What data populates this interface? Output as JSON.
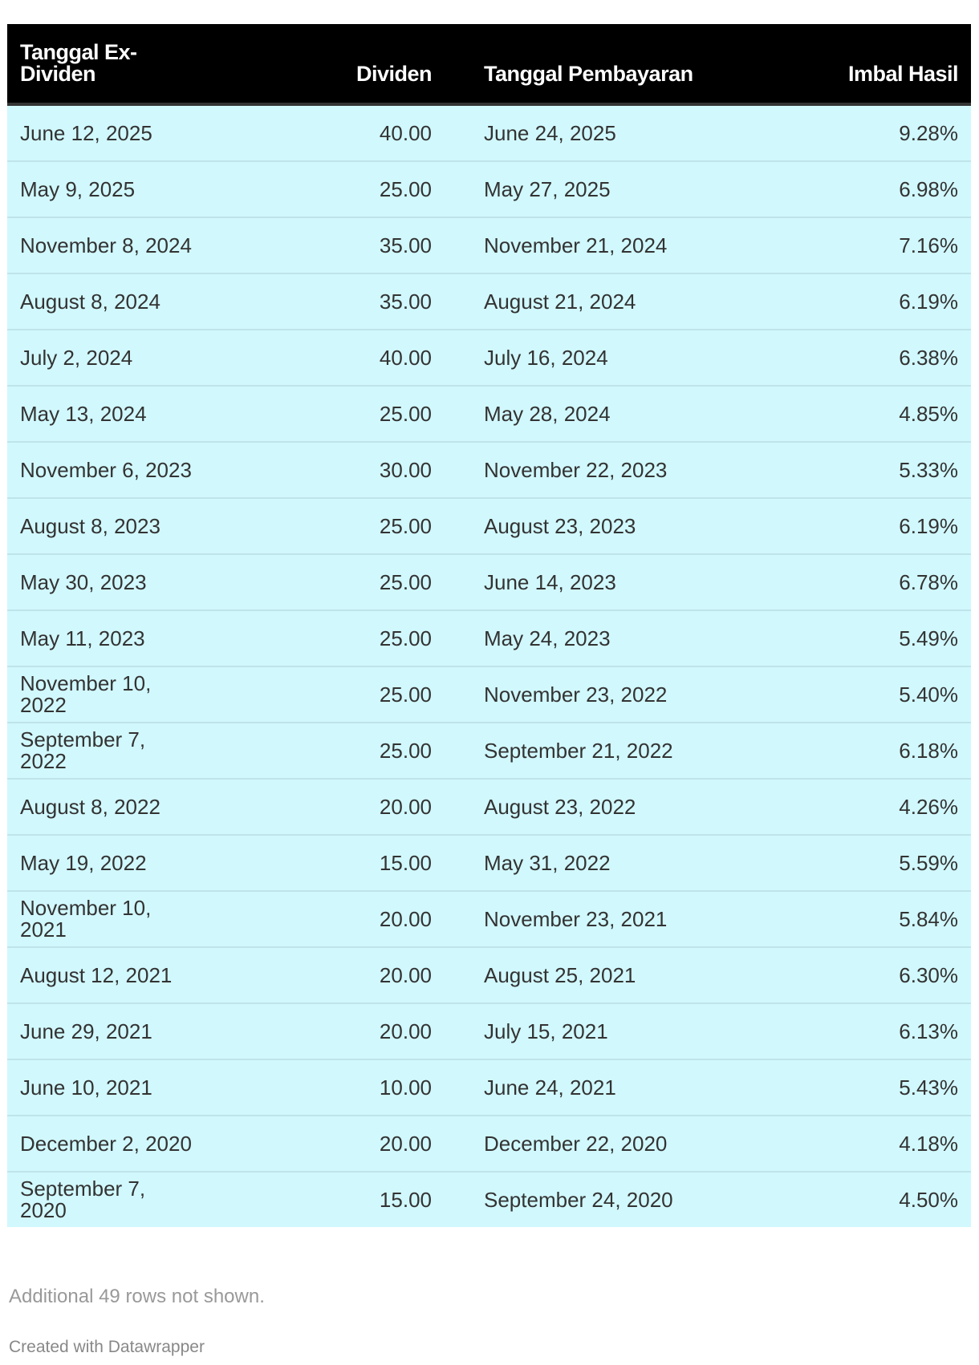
{
  "table": {
    "headers": [
      "Tanggal Ex-Dividen",
      "Dividen",
      "Tanggal Pembayaran",
      "Imbal Hasil"
    ],
    "rows": [
      [
        "June 12, 2025",
        "40.00",
        "June 24, 2025",
        "9.28%"
      ],
      [
        "May 9, 2025",
        "25.00",
        "May 27, 2025",
        "6.98%"
      ],
      [
        "November 8, 2024",
        "35.00",
        "November 21, 2024",
        "7.16%"
      ],
      [
        "August 8, 2024",
        "35.00",
        "August 21, 2024",
        "6.19%"
      ],
      [
        "July 2, 2024",
        "40.00",
        "July 16, 2024",
        "6.38%"
      ],
      [
        "May 13, 2024",
        "25.00",
        "May 28, 2024",
        "4.85%"
      ],
      [
        "November 6, 2023",
        "30.00",
        "November 22, 2023",
        "5.33%"
      ],
      [
        "August 8, 2023",
        "25.00",
        "August 23, 2023",
        "6.19%"
      ],
      [
        "May 30, 2023",
        "25.00",
        "June 14, 2023",
        "6.78%"
      ],
      [
        "May 11, 2023",
        "25.00",
        "May 24, 2023",
        "5.49%"
      ],
      [
        "November 10, 2022",
        "25.00",
        "November 23, 2022",
        "5.40%"
      ],
      [
        "September 7, 2022",
        "25.00",
        "September 21, 2022",
        "6.18%"
      ],
      [
        "August 8, 2022",
        "20.00",
        "August 23, 2022",
        "4.26%"
      ],
      [
        "May 19, 2022",
        "15.00",
        "May 31, 2022",
        "5.59%"
      ],
      [
        "November 10, 2021",
        "20.00",
        "November 23, 2021",
        "5.84%"
      ],
      [
        "August 12, 2021",
        "20.00",
        "August 25, 2021",
        "6.30%"
      ],
      [
        "June 29, 2021",
        "20.00",
        "July 15, 2021",
        "6.13%"
      ],
      [
        "June 10, 2021",
        "10.00",
        "June 24, 2021",
        "5.43%"
      ],
      [
        "December 2, 2020",
        "20.00",
        "December 22, 2020",
        "4.18%"
      ],
      [
        "September 7, 2020",
        "15.00",
        "September 24, 2020",
        "4.50%"
      ]
    ]
  },
  "notes": "Additional 49 rows not shown.",
  "credit": "Created with Datawrapper",
  "colors": {
    "header_bg": "#000000",
    "row_bg": "#d1f8fd"
  }
}
